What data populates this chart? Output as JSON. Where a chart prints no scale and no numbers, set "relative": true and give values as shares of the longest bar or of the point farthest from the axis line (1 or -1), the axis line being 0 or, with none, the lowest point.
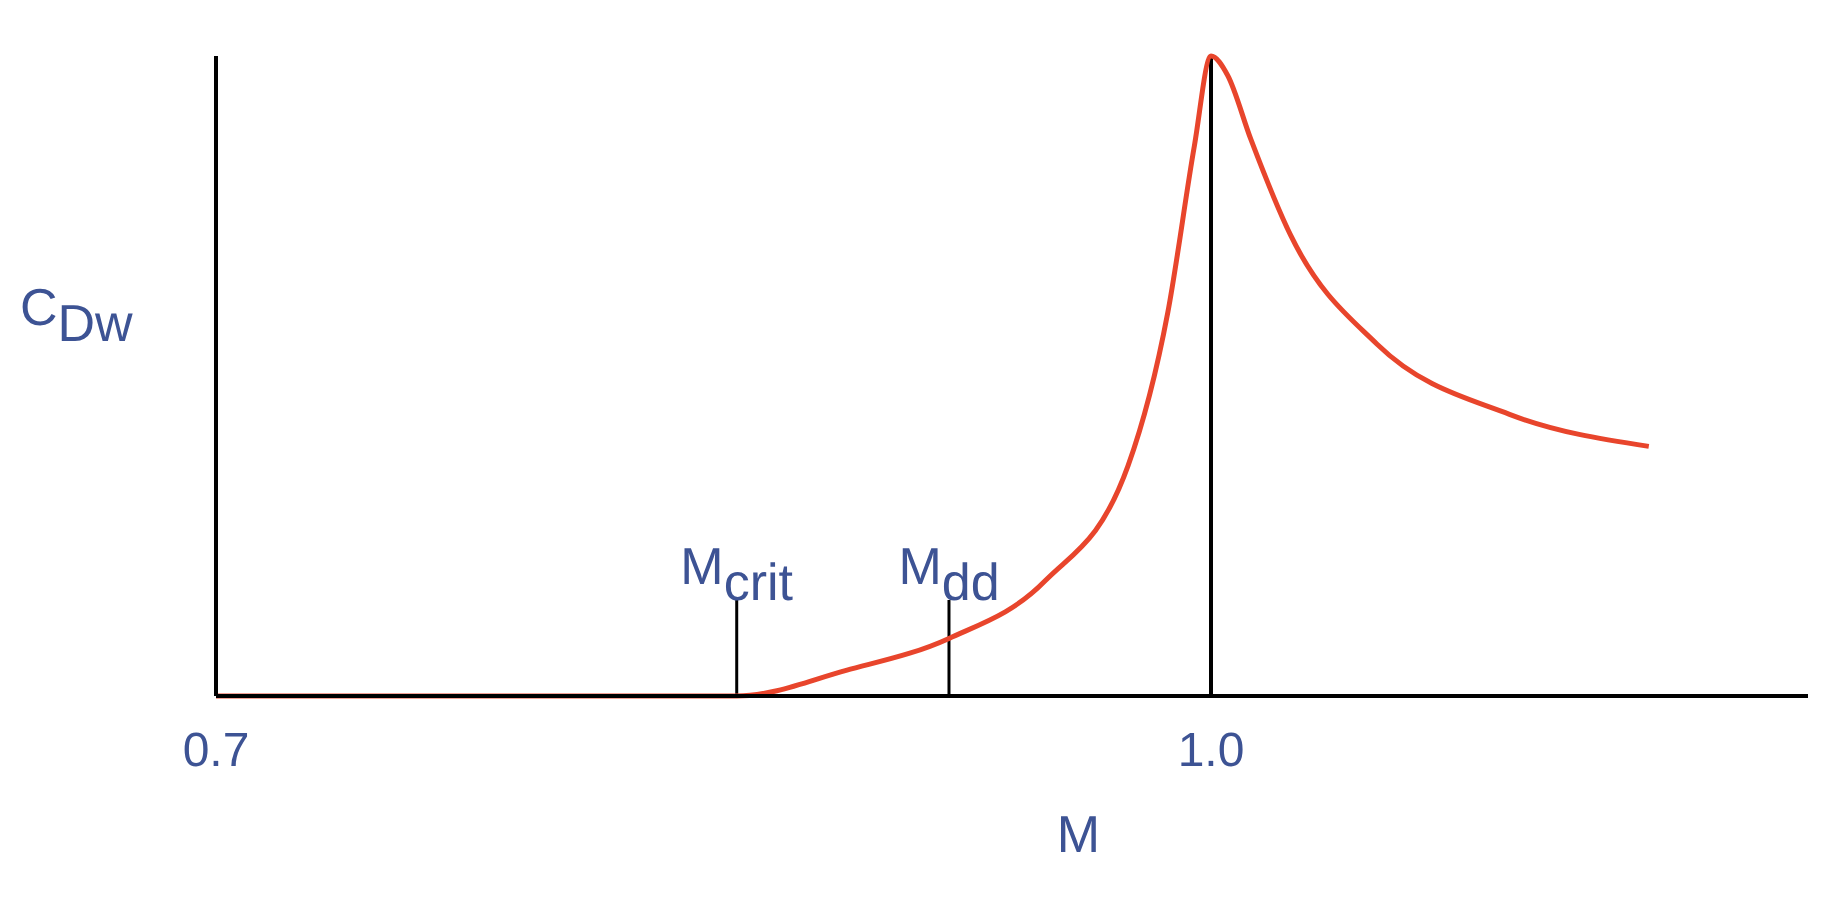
{
  "chart_data": {
    "type": "line",
    "xlabel": "M",
    "ylabel": "C$_{Dw}$",
    "relative": true,
    "x": [
      0.7,
      0.75,
      0.8,
      0.857,
      0.89,
      0.921,
      0.95,
      0.975,
      0.987,
      0.995,
      1.0,
      1.005,
      1.012,
      1.024,
      1.05,
      1.09,
      1.132
    ],
    "series": [
      {
        "color": "#e8452c",
        "values": [
          0,
          0,
          0,
          0,
          0.04,
          0.09,
          0.18,
          0.36,
          0.6,
          0.86,
          1,
          0.97,
          0.87,
          0.72,
          0.55,
          0.44,
          0.39
        ]
      }
    ],
    "xlim": [
      0.7,
      1.18
    ],
    "xticks": [
      0.7,
      {
        "value": 1.0,
        "label": "1.0"
      }
    ],
    "ref_lines": [
      {
        "axis": "x",
        "value": 0.857,
        "label": "M$_{crit}$"
      },
      {
        "axis": "x",
        "value": 0.921,
        "label": "M$_{dd}$"
      },
      {
        "axis": "x",
        "value": 1.0
      }
    ],
    "marker": "none",
    "line_style": "solid"
  }
}
